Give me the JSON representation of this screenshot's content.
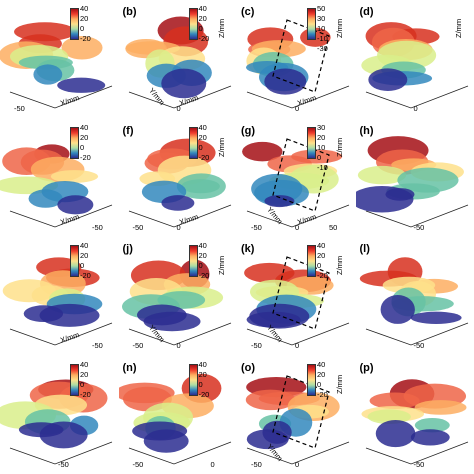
{
  "panels": [
    {
      "label": "",
      "ticks": [
        "40",
        "20",
        "0",
        "-20"
      ],
      "zlabel": "",
      "axis1": "X/mm",
      "axis2": "",
      "n1": "-50",
      "n2": "",
      "n3": "",
      "dashed": false
    },
    {
      "label": "(b)",
      "ticks": [
        "40",
        "20",
        "0",
        "-20"
      ],
      "zlabel": "Z/mm",
      "axis1": "X/mm",
      "axis2": "Y/mm",
      "n1": "",
      "n2": "0",
      "n3": "",
      "dashed": false
    },
    {
      "label": "(c)",
      "ticks": [
        "50",
        "30",
        "10",
        "-10",
        "-30"
      ],
      "zlabel": "Z/mm",
      "axis1": "X/mm",
      "axis2": "",
      "n1": "",
      "n2": "0",
      "n3": "",
      "dashed": true
    },
    {
      "label": "(d)",
      "ticks": [],
      "zlabel": "Z/mm",
      "axis1": "",
      "axis2": "",
      "n1": "",
      "n2": "0",
      "n3": "",
      "dashed": false
    },
    {
      "label": "",
      "ticks": [
        "40",
        "20",
        "0",
        "-20"
      ],
      "zlabel": "",
      "axis1": "X/mm",
      "axis2": "",
      "n1": "",
      "n2": "",
      "n3": "-50",
      "dashed": false
    },
    {
      "label": "(f)",
      "ticks": [
        "40",
        "20",
        "0",
        "-20"
      ],
      "zlabel": "Z/mm",
      "axis1": "X/mm",
      "axis2": "",
      "n1": "-50",
      "n2": "0",
      "n3": "",
      "dashed": false
    },
    {
      "label": "(g)",
      "ticks": [
        "30",
        "20",
        "10",
        "0",
        "-10"
      ],
      "zlabel": "Z/mm",
      "axis1": "X/mm",
      "axis2": "Y/mm",
      "n1": "-50",
      "n2": "0",
      "n3": "50",
      "dashed": true
    },
    {
      "label": "(h)",
      "ticks": [],
      "zlabel": "",
      "axis1": "",
      "axis2": "",
      "n1": "",
      "n2": "-50",
      "n3": "",
      "dashed": false
    },
    {
      "label": "",
      "ticks": [
        "40",
        "20",
        "0",
        "-20"
      ],
      "zlabel": "",
      "axis1": "X/mm",
      "axis2": "",
      "n1": "",
      "n2": "",
      "n3": "-50",
      "dashed": false
    },
    {
      "label": "(j)",
      "ticks": [
        "40",
        "20",
        "0",
        "-20"
      ],
      "zlabel": "Z/mm",
      "axis1": "",
      "axis2": "Y/mm",
      "n1": "-50",
      "n2": "0",
      "n3": "",
      "dashed": false
    },
    {
      "label": "(k)",
      "ticks": [
        "40",
        "20",
        "0",
        "-20"
      ],
      "zlabel": "Z/mm",
      "axis1": "",
      "axis2": "Y/mm",
      "n1": "-50",
      "n2": "0",
      "n3": "",
      "dashed": true
    },
    {
      "label": "(l)",
      "ticks": [],
      "zlabel": "",
      "axis1": "",
      "axis2": "",
      "n1": "",
      "n2": "-50",
      "n3": "",
      "dashed": false
    },
    {
      "label": "",
      "ticks": [
        "40",
        "20",
        "0",
        "-20"
      ],
      "zlabel": "",
      "axis1": "",
      "axis2": "",
      "n1": "",
      "n2": "-50",
      "n3": "",
      "dashed": false
    },
    {
      "label": "(n)",
      "ticks": [
        "40",
        "20",
        "0",
        "-20"
      ],
      "zlabel": "",
      "axis1": "",
      "axis2": "",
      "n1": "-50",
      "n2": "",
      "n3": "0",
      "dashed": false
    },
    {
      "label": "(o)",
      "ticks": [
        "40",
        "20",
        "0",
        "-20"
      ],
      "zlabel": "Z/mm",
      "axis1": "",
      "axis2": "Y/mm",
      "n1": "-50",
      "n2": "0",
      "n3": "",
      "dashed": true
    },
    {
      "label": "(p)",
      "ticks": [],
      "zlabel": "",
      "axis1": "",
      "axis2": "",
      "n1": "",
      "n2": "-50",
      "n3": "",
      "dashed": false
    }
  ]
}
